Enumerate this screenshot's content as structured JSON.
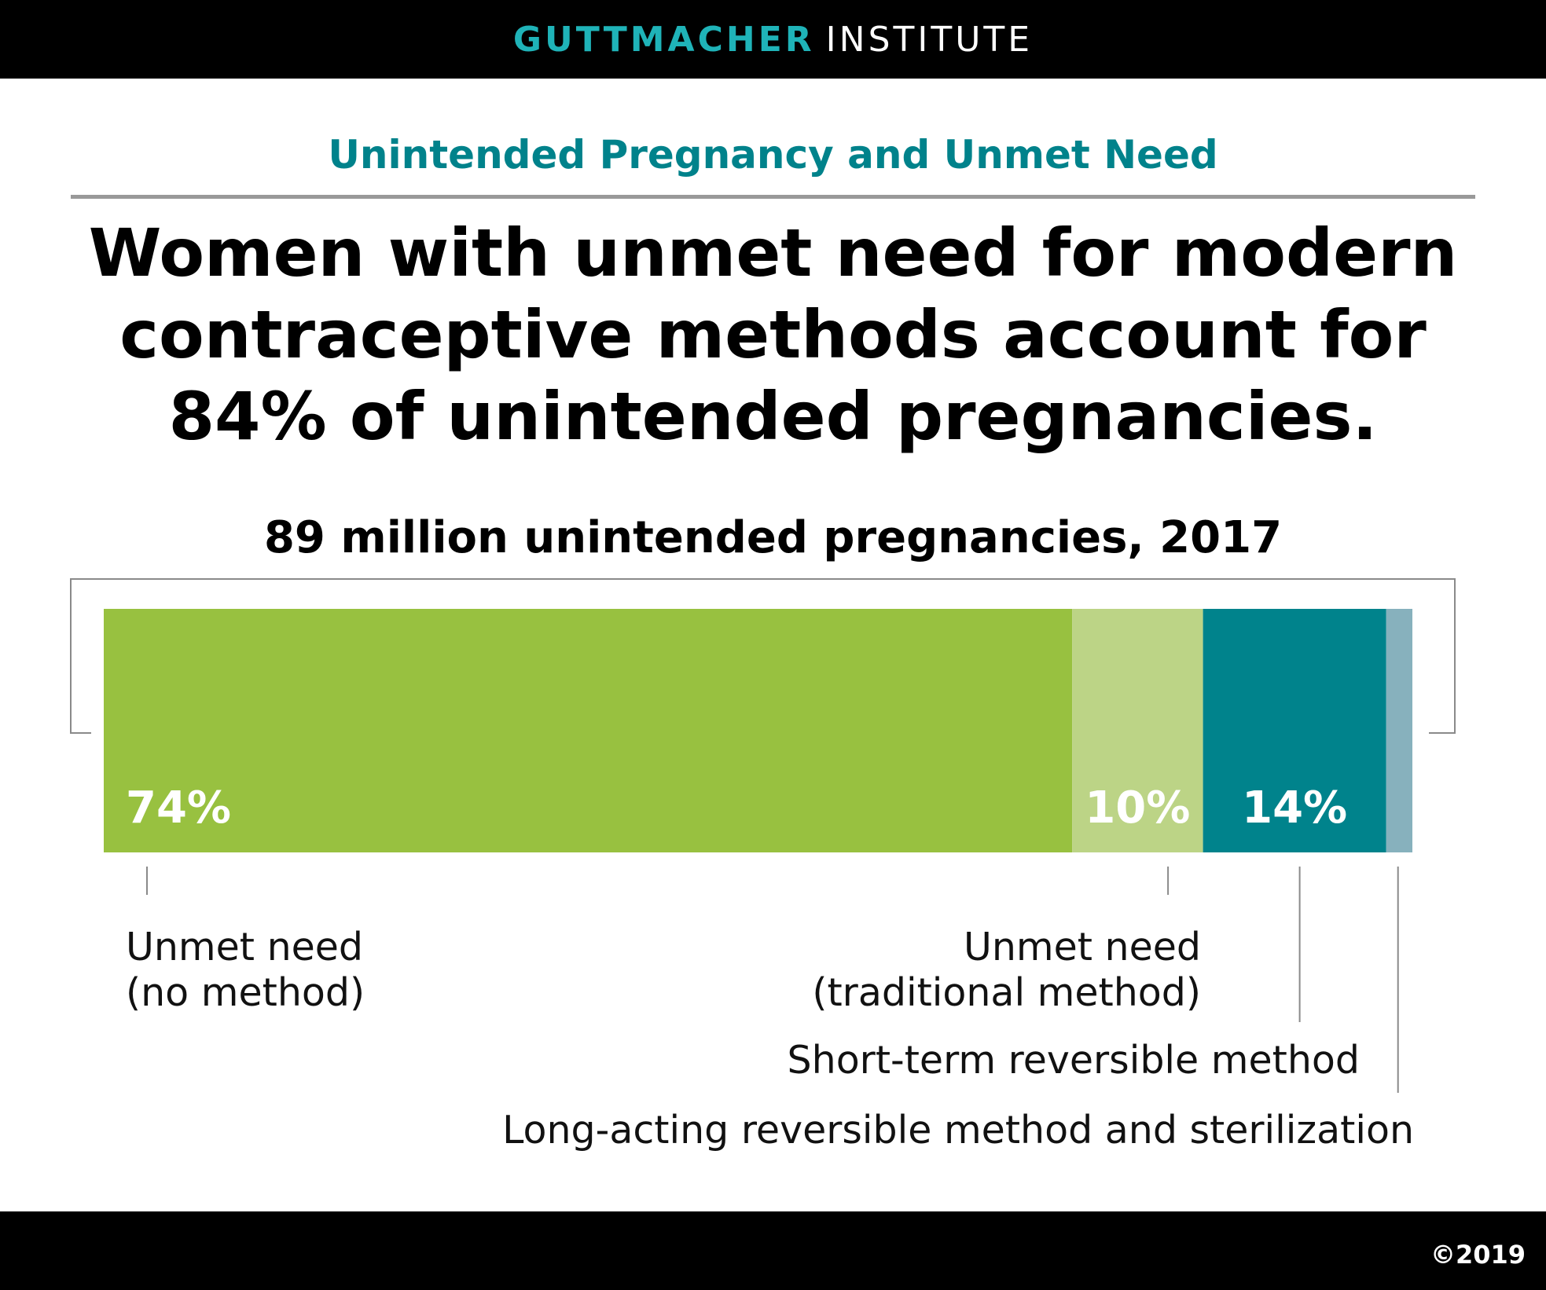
{
  "header": {
    "brand_primary": "GUTTMACHER",
    "brand_secondary": "INSTITUTE"
  },
  "kicker": "Unintended Pregnancy and Unmet Need",
  "headline": {
    "line1": "Women with unmet need for modern",
    "line2": "contraceptive methods account for",
    "line3": "84% of unintended pregnancies."
  },
  "footer": {
    "copyright": "©2019"
  },
  "colors": {
    "brand_teal": "#1fb3b8",
    "kicker_teal": "#00828b",
    "no_method": "#98c140",
    "traditional": "#bcd486",
    "short_term": "#00838c",
    "long_acting": "#87b1bd"
  },
  "chart_data": {
    "type": "bar",
    "orientation": "horizontal-stacked",
    "title": "89 million unintended pregnancies, 2017",
    "unit": "%",
    "series": [
      {
        "name": "Unmet need (no method)",
        "label_lines": [
          "Unmet need",
          "(no method)"
        ],
        "value": 74,
        "value_label": "74%",
        "color": "#98c140"
      },
      {
        "name": "Unmet need (traditional method)",
        "label_lines": [
          "Unmet need",
          "(traditional method)"
        ],
        "value": 10,
        "value_label": "10%",
        "color": "#bcd486"
      },
      {
        "name": "Short-term reversible method",
        "label_lines": [
          "Short-term reversible method"
        ],
        "value": 14,
        "value_label": "14%",
        "color": "#00838c"
      },
      {
        "name": "Long-acting reversible method and sterilization",
        "label_lines": [
          "Long-acting reversible method and sterilization"
        ],
        "value": 2,
        "value_label": "",
        "color": "#87b1bd"
      }
    ]
  }
}
